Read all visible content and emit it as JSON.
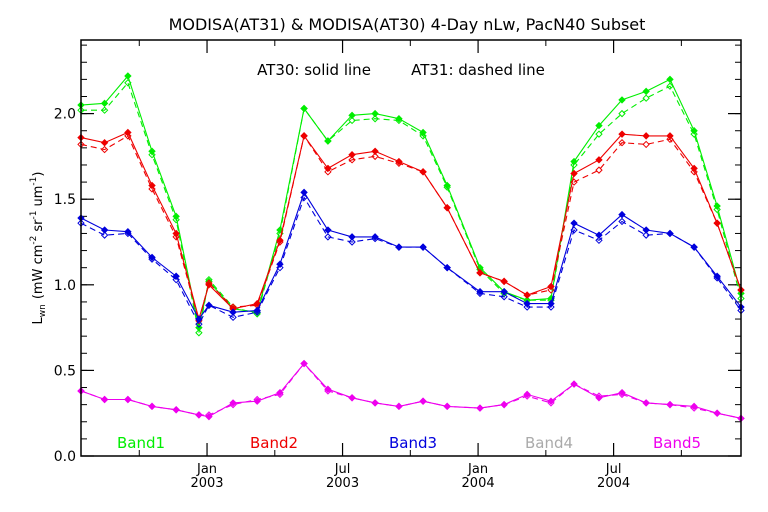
{
  "chart_data": {
    "type": "line",
    "title": "MODISA(AT31) & MODISA(AT30) 4-Day nLw, PacN40 Subset",
    "annotation": {
      "solid_label": "AT30: solid line",
      "dashed_label": "AT31: dashed line"
    },
    "ylabel": {
      "prefix": "L",
      "prefix_sub": "wn",
      "units_open": "(mW cm",
      "units_exp1": "-2",
      "units_mid": "sr",
      "units_exp2": "-1",
      "units_um": "um",
      "units_exp3": "-1",
      "units_close": ")"
    },
    "xlim": [
      2002.535,
      2004.97
    ],
    "ylim": [
      0,
      2.43
    ],
    "y_ticks": [
      {
        "value": 0.0,
        "label": "0.0"
      },
      {
        "value": 0.5,
        "label": "0.5"
      },
      {
        "value": 1.0,
        "label": "1.0"
      },
      {
        "value": 1.5,
        "label": "1.5"
      },
      {
        "value": 2.0,
        "label": "2.0"
      }
    ],
    "y_minor_step": 0.1,
    "x_ticks": [
      {
        "value": 2003.0,
        "label_top": "Jan",
        "label_bottom": "2003"
      },
      {
        "value": 2003.5,
        "label_top": "Jul",
        "label_bottom": "2003"
      },
      {
        "value": 2004.0,
        "label_top": "Jan",
        "label_bottom": "2004"
      },
      {
        "value": 2004.5,
        "label_top": "Jul",
        "label_bottom": "2004"
      }
    ],
    "x_minor_ticks": [
      2002.75,
      2003.25,
      2003.75,
      2004.25,
      2004.75
    ],
    "grid": false,
    "legend_placement": "bottom-inside",
    "x": [
      2002.535,
      2002.622,
      2002.708,
      2002.797,
      2002.886,
      2002.97,
      2003.007,
      2003.096,
      2003.185,
      2003.269,
      2003.358,
      2003.446,
      2003.535,
      2003.62,
      2003.708,
      2003.797,
      2003.886,
      2004.007,
      2004.096,
      2004.181,
      2004.269,
      2004.354,
      2004.446,
      2004.531,
      2004.62,
      2004.708,
      2004.797,
      2004.882,
      2004.97
    ],
    "series": [
      {
        "name": "Band1",
        "color": "#00ee00",
        "AT30": [
          2.05,
          2.06,
          2.22,
          1.78,
          1.4,
          0.75,
          1.02,
          0.86,
          0.84,
          1.32,
          2.03,
          1.84,
          1.99,
          2.0,
          1.97,
          1.89,
          1.58,
          1.1,
          0.96,
          0.91,
          0.92,
          1.72,
          1.93,
          2.08,
          2.13,
          2.2,
          1.9,
          1.46,
          0.95
        ],
        "AT31": [
          2.02,
          2.02,
          2.18,
          1.76,
          1.38,
          0.72,
          1.03,
          0.87,
          0.83,
          1.3,
          2.03,
          1.84,
          1.96,
          1.97,
          1.96,
          1.87,
          1.57,
          1.09,
          0.95,
          0.91,
          0.91,
          1.7,
          1.88,
          2.0,
          2.09,
          2.16,
          1.88,
          1.44,
          0.92
        ]
      },
      {
        "name": "Band2",
        "color": "#ee0000",
        "AT30": [
          1.86,
          1.83,
          1.89,
          1.58,
          1.3,
          0.8,
          1.0,
          0.86,
          0.89,
          1.26,
          1.87,
          1.68,
          1.76,
          1.78,
          1.72,
          1.66,
          1.45,
          1.07,
          1.02,
          0.94,
          0.99,
          1.65,
          1.73,
          1.88,
          1.87,
          1.87,
          1.68,
          1.36,
          0.97
        ],
        "AT31": [
          1.82,
          1.79,
          1.87,
          1.56,
          1.28,
          0.79,
          1.01,
          0.87,
          0.88,
          1.25,
          1.87,
          1.66,
          1.73,
          1.75,
          1.71,
          1.66,
          1.45,
          1.07,
          1.02,
          0.94,
          0.97,
          1.6,
          1.67,
          1.83,
          1.82,
          1.85,
          1.66,
          1.36,
          0.97
        ]
      },
      {
        "name": "Band3",
        "color": "#0000dd",
        "AT30": [
          1.39,
          1.32,
          1.31,
          1.16,
          1.05,
          0.8,
          0.88,
          0.84,
          0.85,
          1.12,
          1.54,
          1.32,
          1.28,
          1.28,
          1.22,
          1.22,
          1.1,
          0.96,
          0.96,
          0.89,
          0.89,
          1.36,
          1.29,
          1.41,
          1.32,
          1.3,
          1.22,
          1.05,
          0.87
        ],
        "AT31": [
          1.36,
          1.29,
          1.3,
          1.15,
          1.03,
          0.77,
          0.88,
          0.81,
          0.84,
          1.1,
          1.51,
          1.28,
          1.25,
          1.27,
          1.22,
          1.22,
          1.1,
          0.95,
          0.93,
          0.87,
          0.87,
          1.32,
          1.26,
          1.37,
          1.29,
          1.3,
          1.22,
          1.04,
          0.85
        ]
      },
      {
        "name": "Band4",
        "color": "#aaaaaa",
        "AT30": [],
        "AT31": []
      },
      {
        "name": "Band5",
        "color": "#ee00ee",
        "AT30": [
          0.38,
          0.33,
          0.33,
          0.29,
          0.27,
          0.24,
          0.23,
          0.31,
          0.32,
          0.37,
          0.54,
          0.39,
          0.34,
          0.31,
          0.29,
          0.32,
          0.29,
          0.28,
          0.3,
          0.36,
          0.32,
          0.42,
          0.34,
          0.37,
          0.31,
          0.3,
          0.29,
          0.25,
          0.22
        ],
        "AT31": [
          0.38,
          0.33,
          0.33,
          0.29,
          0.27,
          0.24,
          0.24,
          0.3,
          0.33,
          0.36,
          0.54,
          0.38,
          0.34,
          0.31,
          0.29,
          0.32,
          0.29,
          0.28,
          0.3,
          0.35,
          0.31,
          0.42,
          0.35,
          0.36,
          0.31,
          0.3,
          0.28,
          0.25,
          0.22
        ]
      }
    ]
  }
}
